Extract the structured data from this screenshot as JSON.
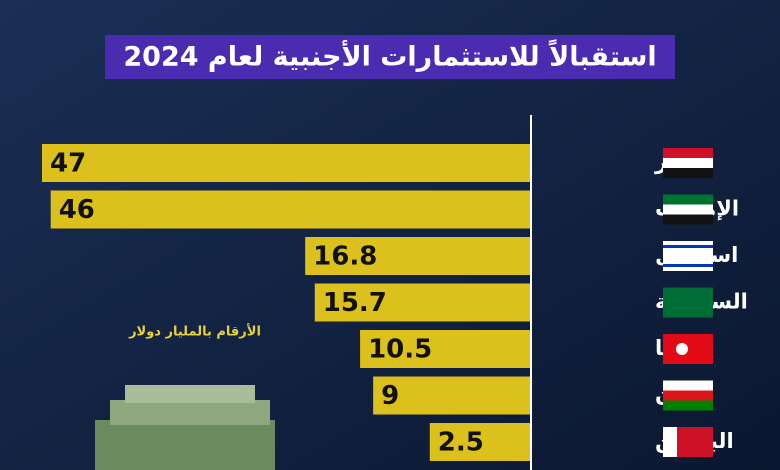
{
  "chart_data": {
    "type": "bar",
    "orientation": "horizontal",
    "subtitle": "استقبالاً للاستثمارات الأجنبية لعام 2024",
    "note": "الأرقام بالمليار دولار",
    "categories": [
      "مصر",
      "الإمارات",
      "اسرائيل",
      "السعودية",
      "تركيا",
      "عمان",
      "البحرين"
    ],
    "values": [
      47,
      46,
      16.8,
      15.7,
      10.5,
      9,
      2.5
    ],
    "color": "#dcc01c",
    "xlim": [
      -9,
      47
    ]
  }
}
